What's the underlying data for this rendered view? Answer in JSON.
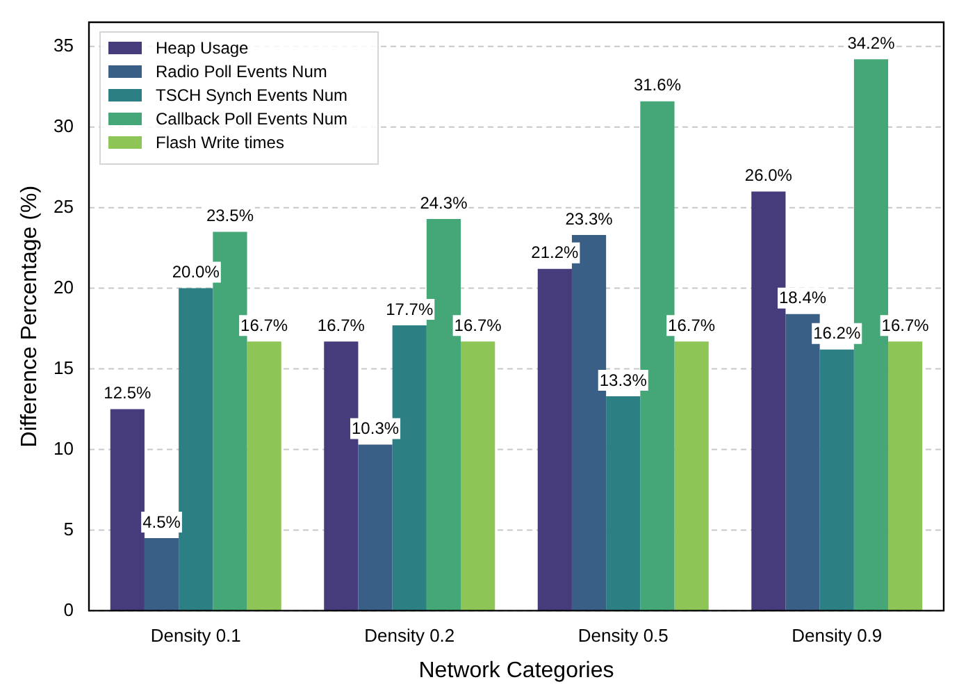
{
  "chart_data": {
    "type": "bar",
    "xlabel": "Network Categories",
    "ylabel": "Difference Percentage (%)",
    "categories": [
      "Density 0.1",
      "Density 0.2",
      "Density 0.5",
      "Density 0.9"
    ],
    "series": [
      {
        "name": "Heap Usage",
        "color": "#473c7b",
        "values": [
          12.5,
          16.7,
          21.2,
          26.0
        ],
        "value_labels": [
          "12.5%",
          "16.7%",
          "21.2%",
          "26.0%"
        ]
      },
      {
        "name": "Radio Poll Events Num",
        "color": "#3a5f86",
        "values": [
          4.5,
          10.3,
          23.3,
          18.4
        ],
        "value_labels": [
          "4.5%",
          "10.3%",
          "23.3%",
          "18.4%"
        ]
      },
      {
        "name": "TSCH Synch Events Num",
        "color": "#2c8083",
        "values": [
          20.0,
          17.7,
          13.3,
          16.2
        ],
        "value_labels": [
          "20.0%",
          "17.7%",
          "13.3%",
          "16.2%"
        ]
      },
      {
        "name": "Callback Poll Events Num",
        "color": "#45a778",
        "values": [
          23.5,
          24.3,
          31.6,
          34.2
        ],
        "value_labels": [
          "23.5%",
          "24.3%",
          "31.6%",
          "34.2%"
        ]
      },
      {
        "name": "Flash Write times",
        "color": "#8dc556",
        "values": [
          16.7,
          16.7,
          16.7,
          16.7
        ],
        "value_labels": [
          "16.7%",
          "16.7%",
          "16.7%",
          "16.7%"
        ]
      }
    ],
    "ylim": [
      0,
      36.5
    ],
    "yticks": [
      0,
      5,
      10,
      15,
      20,
      25,
      30,
      35
    ],
    "grid": "y",
    "legend": "top left"
  }
}
